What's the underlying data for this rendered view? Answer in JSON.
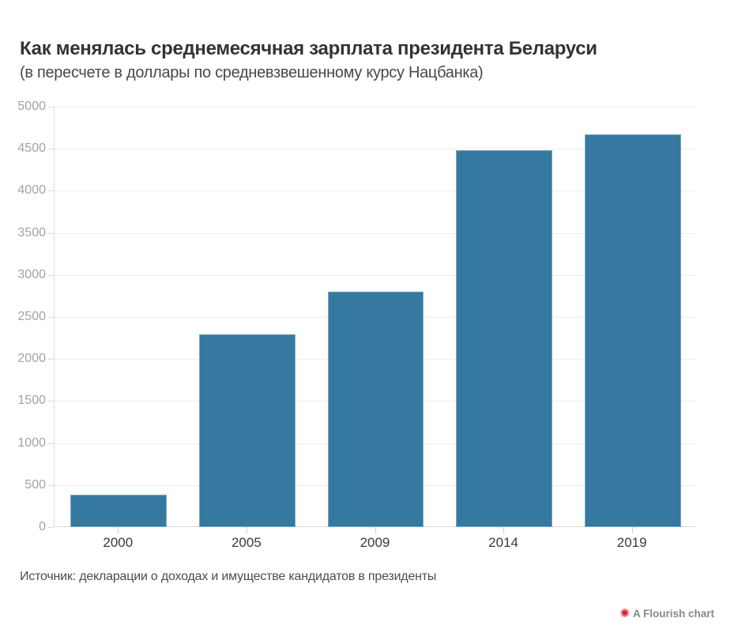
{
  "chart_data": {
    "type": "bar",
    "title": "Как менялась среднемесячная зарплата президента Беларуси",
    "subtitle": "(в пересчете в доллары по средневзвешенному курсу Нацбанка)",
    "categories": [
      "2000",
      "2005",
      "2009",
      "2014",
      "2019"
    ],
    "values": [
      390,
      2290,
      2800,
      4480,
      4670
    ],
    "xlabel": "",
    "ylabel": "",
    "ylim": [
      0,
      5000
    ],
    "ytick_step": 500,
    "yticks": [
      0,
      500,
      1000,
      1500,
      2000,
      2500,
      3000,
      3500,
      4000,
      4500,
      5000
    ],
    "grid": true,
    "legend": "none",
    "bar_color": "#3679A0"
  },
  "footer": {
    "source": "Источник: декларации о доходах и имуществе кандидатов в президенты",
    "flourish_label": "A Flourish chart",
    "flourish_icon_glyph": "✺",
    "flourish_icon_color": "#D8232A"
  },
  "colors": {
    "background": "#FFFFFF",
    "bar": "#3679A0",
    "gridline": "#EDEDED",
    "axis_line": "#DCDCDC",
    "y_label": "#A3A3A3",
    "x_label": "#3A3A3A",
    "title": "#333333"
  }
}
